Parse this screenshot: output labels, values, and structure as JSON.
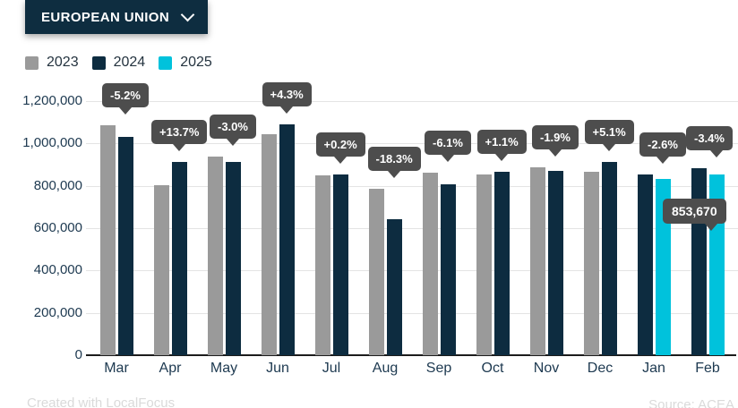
{
  "header": {
    "region_selector": {
      "label": "EUROPEAN UNION"
    }
  },
  "legend": [
    {
      "label": "2023",
      "color": "#9a9a9a"
    },
    {
      "label": "2024",
      "color": "#0d2c40"
    },
    {
      "label": "2025",
      "color": "#00c2dc"
    }
  ],
  "footer": {
    "credit": "Created with LocalFocus",
    "source": "Source: ACEA"
  },
  "colors": {
    "accent_navy": "#0e2d40",
    "bar_gray": "#9a9a9a",
    "bar_navy": "#0d2c40",
    "bar_cyan": "#00c2dc",
    "tooltip_bg": "#4d4d4d",
    "gridline": "#e4e4e4",
    "axis_text": "#1d3950"
  },
  "chart_data": {
    "type": "bar",
    "title": "",
    "xlabel": "",
    "ylabel": "",
    "grid": true,
    "legend_position": "top-left",
    "categories": [
      "Mar",
      "Apr",
      "May",
      "Jun",
      "Jul",
      "Aug",
      "Sep",
      "Oct",
      "Nov",
      "Dec",
      "Jan",
      "Feb"
    ],
    "series": [
      {
        "name": "2023",
        "color": "#9a9a9a",
        "values": [
          1088000,
          803000,
          939000,
          1045000,
          851000,
          788000,
          861000,
          855000,
          886000,
          867000,
          null,
          null
        ]
      },
      {
        "name": "2024",
        "color": "#0d2c40",
        "values": [
          1032000,
          914000,
          912000,
          1090000,
          852000,
          644000,
          809000,
          866000,
          870000,
          911000,
          852000,
          884000
        ]
      },
      {
        "name": "2025",
        "color": "#00c2dc",
        "values": [
          null,
          null,
          null,
          null,
          null,
          null,
          null,
          null,
          null,
          null,
          831000,
          853670
        ]
      }
    ],
    "pct_labels": [
      "-5.2%",
      "+13.7%",
      "-3.0%",
      "+4.3%",
      "+0.2%",
      "-18.3%",
      "-6.1%",
      "+1.1%",
      "-1.9%",
      "+5.1%",
      "-2.6%",
      "-3.4%"
    ],
    "value_tooltip": {
      "text": "853,670",
      "category": "Feb",
      "series": "2025"
    },
    "y_ticks": [
      "0",
      "200,000",
      "400,000",
      "600,000",
      "800,000",
      "1,000,000",
      "1,200,000"
    ],
    "ylim": [
      0,
      1200000
    ]
  }
}
